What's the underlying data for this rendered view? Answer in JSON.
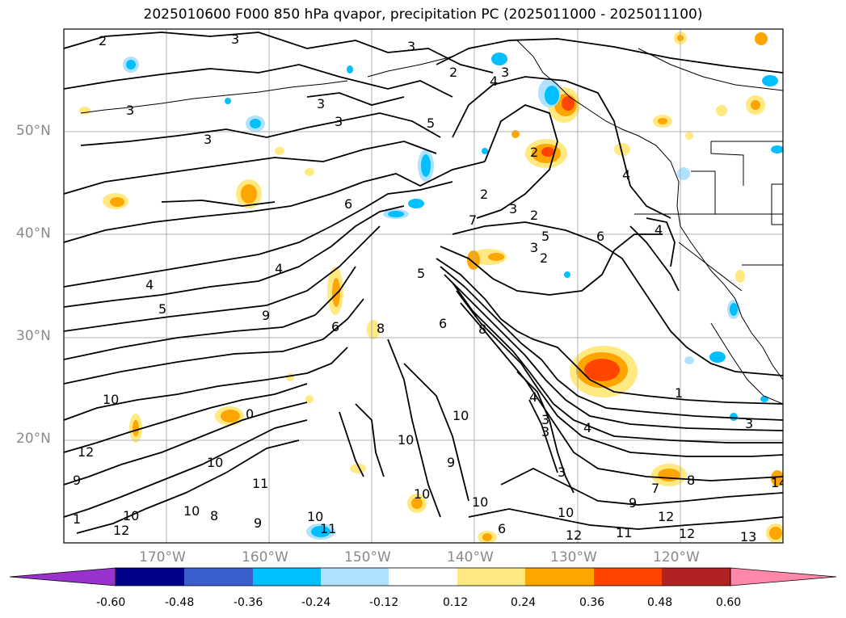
{
  "title": "2025010600 F000 850 hPa qvapor, precipitation PC (2025011000 - 2025011100)",
  "map": {
    "projection": "cylindrical",
    "lon_range_deg_east": [
      -180,
      -110
    ],
    "lat_range_deg": [
      10,
      60
    ],
    "gridlines": true,
    "lat_ticks": [
      "20°N",
      "30°N",
      "40°N",
      "50°N"
    ],
    "lon_ticks": [
      "170°W",
      "160°W",
      "150°W",
      "140°W",
      "130°W",
      "120°W"
    ],
    "contour_field": "850 hPa qvapor",
    "shaded_field": "precipitation PC",
    "visible_contour_labels": [
      "2",
      "3",
      "4",
      "5",
      "6",
      "7",
      "8",
      "9",
      "10",
      "11",
      "12",
      "13",
      "14",
      "1"
    ]
  },
  "colorbar": {
    "orientation": "horizontal",
    "extend": "both",
    "tick_labels": [
      "-0.60",
      "-0.48",
      "-0.36",
      "-0.24",
      "-0.12",
      "0.12",
      "0.24",
      "0.36",
      "0.48",
      "0.60"
    ],
    "colors": [
      "#9932cc",
      "#00008b",
      "#3a5fcd",
      "#00bfff",
      "#b0e2ff",
      "#ffffff",
      "#ffe980",
      "#ffa500",
      "#ff4500",
      "#b22222",
      "#ff88aa"
    ]
  }
}
